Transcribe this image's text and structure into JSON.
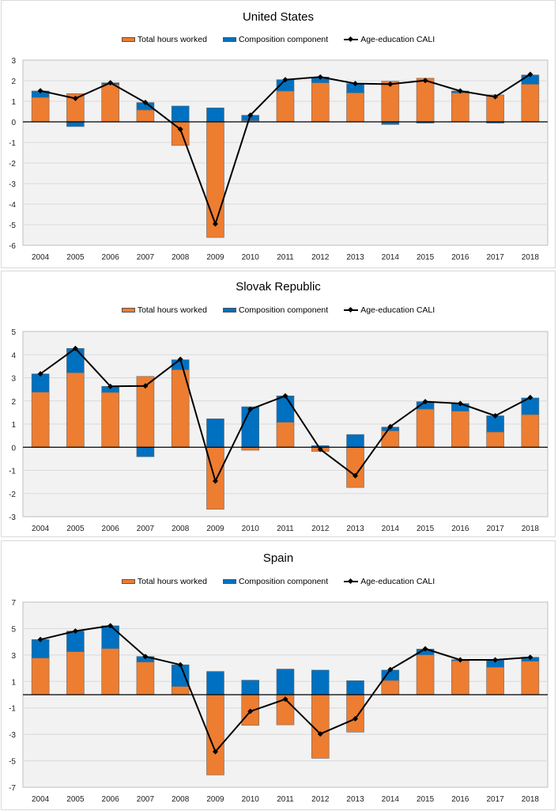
{
  "legend": {
    "total_hours": "Total hours worked",
    "composition": "Composition component",
    "cali": "Age-education CALI"
  },
  "colors": {
    "total_hours": "#ED7D31",
    "composition": "#0070C0",
    "cali": "#000000",
    "plot_bg": "#F2F2F2",
    "grid": "#D9D9D9"
  },
  "chart_data": [
    {
      "type": "bar",
      "stacked": true,
      "title": "United States",
      "categories": [
        "2004",
        "2005",
        "2006",
        "2007",
        "2008",
        "2009",
        "2010",
        "2011",
        "2012",
        "2013",
        "2014",
        "2015",
        "2016",
        "2017",
        "2018"
      ],
      "ylim": [
        -6,
        3
      ],
      "yticks": [
        3,
        2,
        1,
        0,
        -1,
        -2,
        -3,
        -4,
        -5,
        -6
      ],
      "grid": true,
      "legend_position": "top",
      "series": [
        {
          "name": "Total hours worked",
          "type": "bar",
          "values": [
            1.19,
            1.37,
            1.82,
            0.58,
            -1.15,
            -5.62,
            0.06,
            1.5,
            1.9,
            1.41,
            1.97,
            2.12,
            1.41,
            1.31,
            1.83
          ]
        },
        {
          "name": "Composition component",
          "type": "bar",
          "values": [
            0.31,
            -0.23,
            0.08,
            0.36,
            0.77,
            0.68,
            0.26,
            0.55,
            0.28,
            0.45,
            -0.13,
            -0.06,
            0.09,
            -0.06,
            0.45
          ]
        },
        {
          "name": "Age-education CALI",
          "type": "line",
          "values": [
            1.51,
            1.14,
            1.9,
            0.94,
            -0.36,
            -4.96,
            0.32,
            2.05,
            2.18,
            1.86,
            1.83,
            2.01,
            1.5,
            1.22,
            2.31
          ]
        }
      ]
    },
    {
      "type": "bar",
      "stacked": true,
      "title": "Slovak Republic",
      "categories": [
        "2004",
        "2005",
        "2006",
        "2007",
        "2008",
        "2009",
        "2010",
        "2011",
        "2012",
        "2013",
        "2014",
        "2015",
        "2016",
        "2017",
        "2018"
      ],
      "ylim": [
        -3,
        5
      ],
      "yticks": [
        5,
        4,
        3,
        2,
        1,
        0,
        -1,
        -2,
        -3
      ],
      "grid": true,
      "legend_position": "top",
      "series": [
        {
          "name": "Total hours worked",
          "type": "bar",
          "values": [
            2.38,
            3.22,
            2.37,
            3.06,
            3.35,
            -2.68,
            -0.13,
            1.08,
            -0.18,
            -1.74,
            0.71,
            1.65,
            1.56,
            0.66,
            1.41
          ]
        },
        {
          "name": "Composition component",
          "type": "bar",
          "values": [
            0.79,
            1.05,
            0.26,
            -0.41,
            0.43,
            1.23,
            1.75,
            1.14,
            0.07,
            0.55,
            0.16,
            0.32,
            0.33,
            0.7,
            0.72
          ]
        },
        {
          "name": "Age-education CALI",
          "type": "line",
          "values": [
            3.17,
            4.27,
            2.63,
            2.65,
            3.8,
            -1.46,
            1.64,
            2.22,
            -0.09,
            -1.23,
            0.89,
            1.97,
            1.89,
            1.36,
            2.15
          ]
        }
      ]
    },
    {
      "type": "bar",
      "stacked": true,
      "title": "Spain",
      "categories": [
        "2004",
        "2005",
        "2006",
        "2007",
        "2008",
        "2009",
        "2010",
        "2011",
        "2012",
        "2013",
        "2014",
        "2015",
        "2016",
        "2017",
        "2018"
      ],
      "ylim": [
        -7,
        7
      ],
      "yticks": [
        7,
        5,
        3,
        1,
        -1,
        -3,
        -5,
        -7
      ],
      "grid": true,
      "legend_position": "top",
      "series": [
        {
          "name": "Total hours worked",
          "type": "bar",
          "values": [
            2.77,
            3.25,
            3.49,
            2.47,
            0.62,
            -6.07,
            -2.32,
            -2.28,
            -4.81,
            -2.83,
            1.08,
            3.01,
            2.57,
            2.08,
            2.53
          ]
        },
        {
          "name": "Composition component",
          "type": "bar",
          "values": [
            1.4,
            1.56,
            1.72,
            0.42,
            1.64,
            1.76,
            1.1,
            1.94,
            1.86,
            1.06,
            0.78,
            0.44,
            0.08,
            0.53,
            0.3
          ]
        },
        {
          "name": "Age-education CALI",
          "type": "line",
          "values": [
            4.17,
            4.81,
            5.21,
            2.89,
            2.26,
            -4.31,
            -1.26,
            -0.34,
            -2.97,
            -1.82,
            1.9,
            3.47,
            2.63,
            2.63,
            2.83
          ]
        }
      ]
    }
  ]
}
